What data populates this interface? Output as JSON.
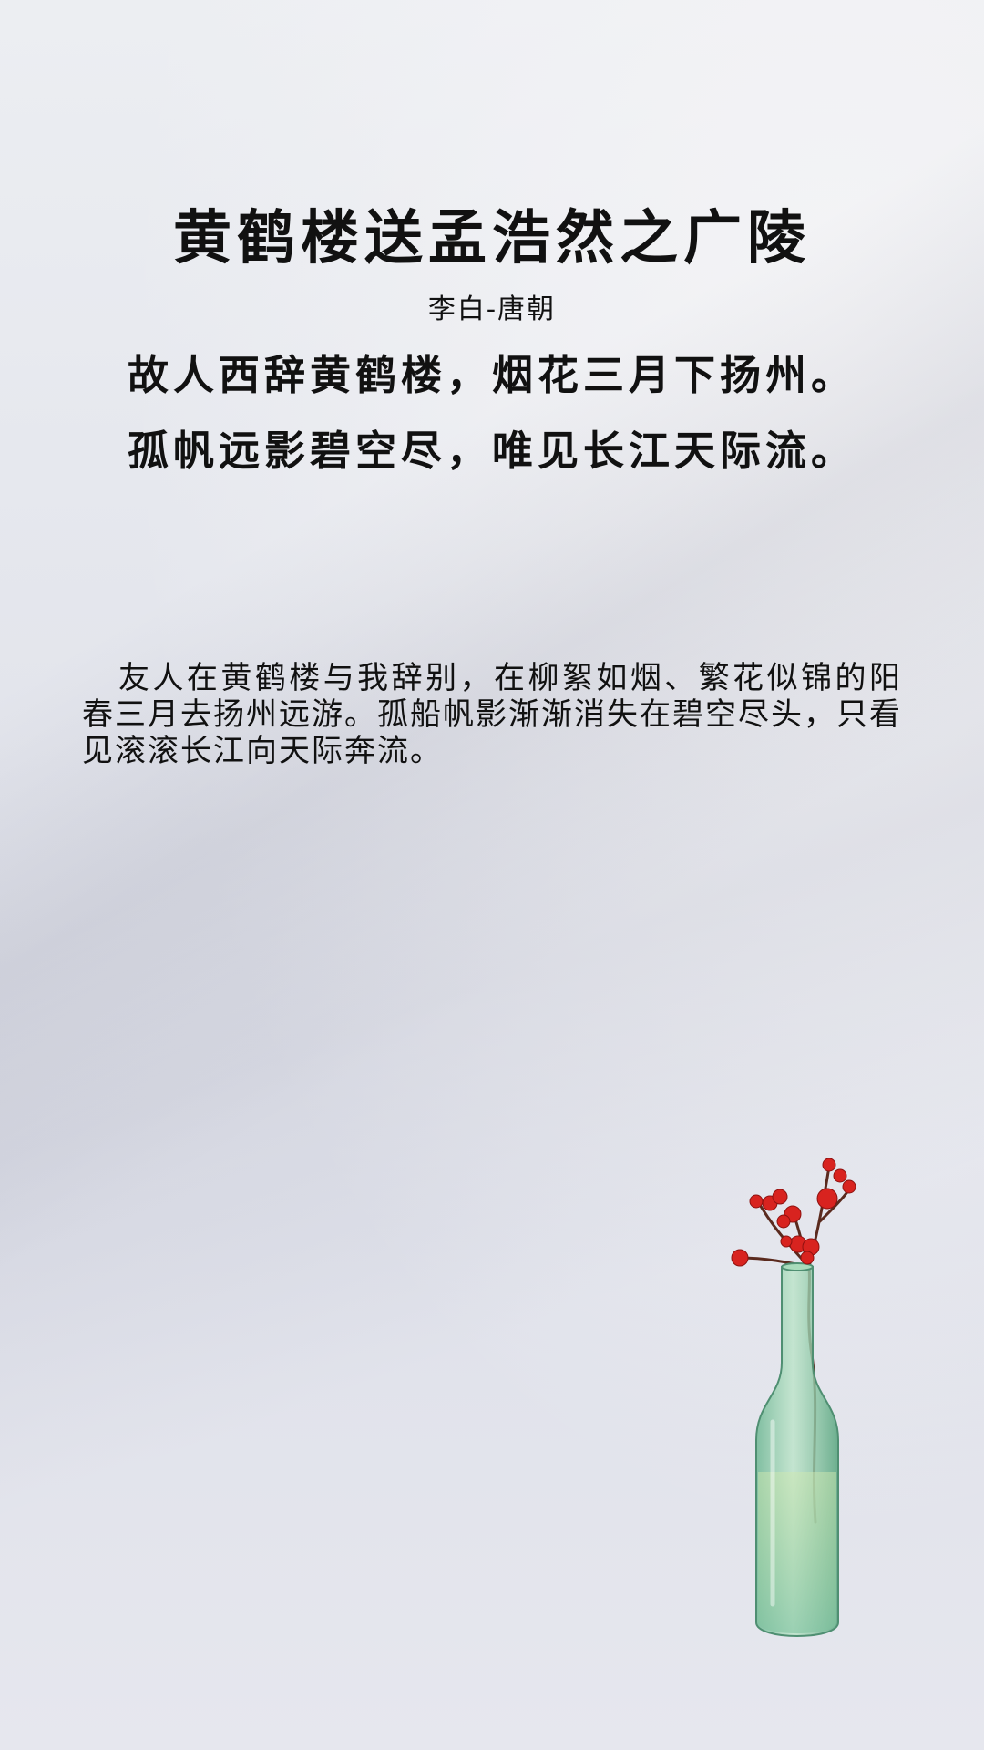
{
  "poem": {
    "title": "黄鹤楼送孟浩然之广陵",
    "author_line": "李白-唐朝",
    "verses": [
      "故人西辞黄鹤楼，烟花三月下扬州。",
      "孤帆远影碧空尽，唯见长江天际流。"
    ]
  },
  "translation": {
    "text": "友人在黄鹤楼与我辞别，在柳絮如烟、繁花似锦的阳春三月去扬州远游。孤船帆影渐渐消失在碧空尽头，只看见滚滚长江向天际奔流。"
  },
  "decoration": {
    "vase_icon": "vase-with-red-berries-icon",
    "berry_color": "#d8231f",
    "vase_color": "#8fcfa8"
  }
}
